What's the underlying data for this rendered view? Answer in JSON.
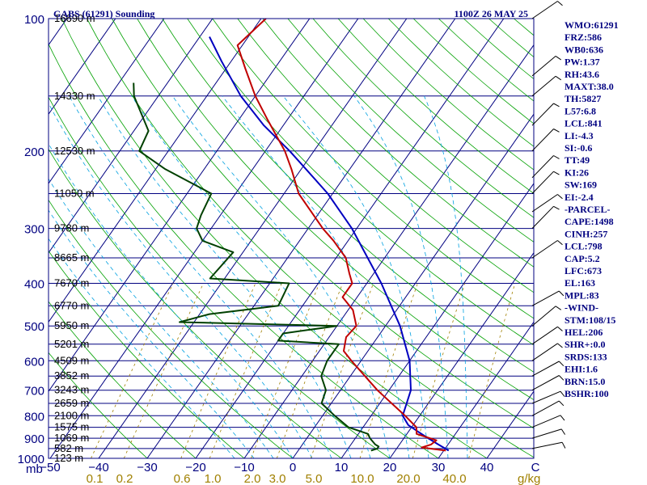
{
  "header": {
    "station": "GABS (61291) Sounding",
    "valid_time": "1100Z 26 MAY 25"
  },
  "indices": [
    "WMO:61291",
    "FRZ:586",
    "WB0:636",
    "PW:1.37",
    "RH:43.6",
    "MAXT:38.0",
    "TH:5827",
    "L57:6.8",
    "LCL:841",
    "LI:-4.3",
    "SI:-0.6",
    "TT:49",
    "KI:26",
    "SW:169",
    "EI:-2.4",
    "-PARCEL-",
    "CAPE:1498",
    "CINH:257",
    "LCL:798",
    "CAP:5.2",
    "LFC:673",
    "EL:163",
    "MPL:83",
    "-WIND-",
    "STM:108/15",
    "HEL:206",
    "SHR+:0.0",
    "SRDS:133",
    "EHI:1.6",
    "BRN:15.0",
    "BSHR:100"
  ],
  "axis_labels": {
    "pressure_unit": "mb",
    "mixing_ratio_unit": "g/kg"
  },
  "colors": {
    "frame": "#000080",
    "isobar": "#000080",
    "isotherm": "#000080",
    "dry_adiabat": "#00a000",
    "moist_adiabat": "#00a0e0",
    "mixing_ratio": "#a08000",
    "temperature": "#c00000",
    "dewpoint": "#004000",
    "parcel": "#0000c0",
    "wind_barbs": "#000000"
  },
  "chart_data": {
    "type": "skew-t log-p",
    "y_axis": {
      "quantity": "pressure (mb)",
      "range": [
        1000,
        100
      ],
      "scale": "log"
    },
    "x_axis": {
      "quantity": "temperature (C)",
      "range": [
        -50,
        50
      ],
      "skewed": true
    },
    "pressure_ticks": [
      100,
      200,
      300,
      400,
      500,
      600,
      700,
      800,
      900,
      1000
    ],
    "temperature_ticks": [
      "−50",
      "−40",
      "−30",
      "−20",
      "−10",
      "0",
      "10",
      "20",
      "30",
      "40",
      "C"
    ],
    "mixing_ratio_ticks": [
      "0.1",
      "0.2",
      "0.6",
      "1.0",
      "2.0",
      "3.0",
      "5.0",
      "10.0",
      "20.0",
      "40.0"
    ],
    "height_levels": [
      {
        "p": 100,
        "label": "16690 m"
      },
      {
        "p": 150,
        "label": "14330 m"
      },
      {
        "p": 200,
        "label": "12530 m"
      },
      {
        "p": 250,
        "label": "11050 m"
      },
      {
        "p": 300,
        "label": "9780 m"
      },
      {
        "p": 350,
        "label": "8665 m"
      },
      {
        "p": 400,
        "label": "7670 m"
      },
      {
        "p": 450,
        "label": "6770 m"
      },
      {
        "p": 500,
        "label": "5950 m"
      },
      {
        "p": 550,
        "label": "5201 m"
      },
      {
        "p": 600,
        "label": "4509 m"
      },
      {
        "p": 650,
        "label": "3852 m"
      },
      {
        "p": 700,
        "label": "3243 m"
      },
      {
        "p": 750,
        "label": "2659 m"
      },
      {
        "p": 800,
        "label": "2100 m"
      },
      {
        "p": 850,
        "label": "1575 m"
      },
      {
        "p": 900,
        "label": "1069 m"
      },
      {
        "p": 950,
        "label": "582 m"
      },
      {
        "p": 1000,
        "label": "123 m"
      }
    ],
    "temperature_profile": [
      [
        960,
        30.4
      ],
      [
        945,
        25
      ],
      [
        930,
        26.5
      ],
      [
        910,
        27
      ],
      [
        880,
        22
      ],
      [
        850,
        21
      ],
      [
        800,
        17
      ],
      [
        700,
        7.6
      ],
      [
        650,
        3
      ],
      [
        600,
        -2
      ],
      [
        570,
        -5
      ],
      [
        530,
        -6.5
      ],
      [
        500,
        -6
      ],
      [
        460,
        -9
      ],
      [
        430,
        -13
      ],
      [
        400,
        -13
      ],
      [
        380,
        -15
      ],
      [
        350,
        -18
      ],
      [
        320,
        -23
      ],
      [
        300,
        -27
      ],
      [
        250,
        -37
      ],
      [
        220,
        -42
      ],
      [
        200,
        -46
      ],
      [
        170,
        -54
      ],
      [
        150,
        -60
      ],
      [
        130,
        -66
      ],
      [
        115,
        -71
      ],
      [
        100,
        -69
      ]
    ],
    "dewpoint_profile": [
      [
        960,
        15
      ],
      [
        950,
        16
      ],
      [
        940,
        16
      ],
      [
        930,
        15
      ],
      [
        900,
        13
      ],
      [
        880,
        12
      ],
      [
        850,
        7
      ],
      [
        800,
        2.5
      ],
      [
        750,
        -2
      ],
      [
        700,
        -3
      ],
      [
        650,
        -6
      ],
      [
        600,
        -7
      ],
      [
        570,
        -7
      ],
      [
        550,
        -7
      ],
      [
        540,
        -20
      ],
      [
        520,
        -20
      ],
      [
        500,
        -10
      ],
      [
        490,
        -43
      ],
      [
        470,
        -38
      ],
      [
        450,
        -25
      ],
      [
        400,
        -26
      ],
      [
        390,
        -43
      ],
      [
        340,
        -42
      ],
      [
        320,
        -50
      ],
      [
        300,
        -53
      ],
      [
        280,
        -54
      ],
      [
        250,
        -55
      ],
      [
        220,
        -68
      ],
      [
        200,
        -76
      ],
      [
        180,
        -77
      ],
      [
        150,
        -85
      ],
      [
        140,
        -87
      ]
    ],
    "parcel_profile": [
      [
        960,
        31
      ],
      [
        930,
        28
      ],
      [
        900,
        25
      ],
      [
        870,
        22
      ],
      [
        840,
        19
      ],
      [
        800,
        16.5
      ],
      [
        700,
        14.5
      ],
      [
        600,
        10
      ],
      [
        500,
        3
      ],
      [
        400,
        -7
      ],
      [
        350,
        -13.5
      ],
      [
        300,
        -21
      ],
      [
        250,
        -31
      ],
      [
        200,
        -45
      ],
      [
        175,
        -54
      ],
      [
        150,
        -63
      ],
      [
        125,
        -72
      ],
      [
        110,
        -78
      ]
    ]
  }
}
